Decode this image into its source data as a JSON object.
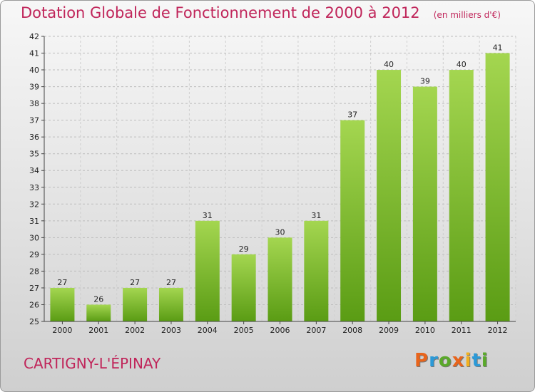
{
  "header": {
    "title": "Dotation Globale de Fonctionnement de 2000 à 2012",
    "subtitle": "(en milliers d'€)"
  },
  "footer": {
    "city": "CARTIGNY-L'ÉPINAY",
    "logo": "Proxiti",
    "logo_colors": [
      "#e8641b",
      "#2b9ad8",
      "#5aa92a",
      "#e8641b",
      "#f2b01e",
      "#2b9ad8",
      "#5aa92a"
    ]
  },
  "colors": {
    "title": "#c0255a",
    "bar_light": "#9fd24c",
    "bar_dark": "#5a9c14"
  },
  "chart_data": {
    "type": "bar",
    "title": "Dotation Globale de Fonctionnement de 2000 à 2012",
    "xlabel": "",
    "ylabel": "",
    "categories": [
      "2000",
      "2001",
      "2002",
      "2003",
      "2004",
      "2005",
      "2006",
      "2007",
      "2008",
      "2009",
      "2010",
      "2011",
      "2012"
    ],
    "values": [
      27,
      26,
      27,
      27,
      31,
      29,
      30,
      31,
      37,
      40,
      39,
      40,
      41
    ],
    "ylim": [
      25,
      42
    ],
    "yticks": [
      25,
      26,
      27,
      28,
      29,
      30,
      31,
      32,
      33,
      34,
      35,
      36,
      37,
      38,
      39,
      40,
      41,
      42
    ],
    "grid": true,
    "legend": "none"
  }
}
